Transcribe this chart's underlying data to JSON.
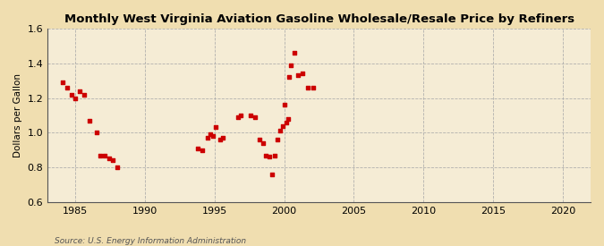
{
  "title": "Monthly West Virginia Aviation Gasoline Wholesale/Resale Price by Refiners",
  "ylabel": "Dollars per Gallon",
  "source": "Source: U.S. Energy Information Administration",
  "xlim": [
    1983,
    2022
  ],
  "ylim": [
    0.6,
    1.6
  ],
  "xticks": [
    1985,
    1990,
    1995,
    2000,
    2005,
    2010,
    2015,
    2020
  ],
  "yticks": [
    0.6,
    0.8,
    1.0,
    1.2,
    1.4,
    1.6
  ],
  "outer_bg": "#f0deb0",
  "plot_bg": "#f5ecd5",
  "marker_color": "#cc0000",
  "data_points": [
    [
      1984.1,
      1.29
    ],
    [
      1984.4,
      1.26
    ],
    [
      1984.7,
      1.22
    ],
    [
      1985.0,
      1.2
    ],
    [
      1985.3,
      1.24
    ],
    [
      1985.6,
      1.22
    ],
    [
      1986.0,
      1.07
    ],
    [
      1986.5,
      1.0
    ],
    [
      1986.8,
      0.87
    ],
    [
      1987.1,
      0.87
    ],
    [
      1987.4,
      0.85
    ],
    [
      1987.7,
      0.84
    ],
    [
      1988.0,
      0.8
    ],
    [
      1993.8,
      0.91
    ],
    [
      1994.1,
      0.9
    ],
    [
      1994.5,
      0.97
    ],
    [
      1994.7,
      0.99
    ],
    [
      1994.9,
      0.98
    ],
    [
      1995.1,
      1.03
    ],
    [
      1995.4,
      0.96
    ],
    [
      1995.6,
      0.97
    ],
    [
      1996.7,
      1.09
    ],
    [
      1996.9,
      1.1
    ],
    [
      1997.6,
      1.1
    ],
    [
      1997.9,
      1.09
    ],
    [
      1998.2,
      0.96
    ],
    [
      1998.5,
      0.94
    ],
    [
      1998.7,
      0.87
    ],
    [
      1998.9,
      0.86
    ],
    [
      1999.1,
      0.76
    ],
    [
      1999.3,
      0.87
    ],
    [
      1999.5,
      0.96
    ],
    [
      1999.7,
      1.01
    ],
    [
      1999.9,
      1.04
    ],
    [
      2000.0,
      1.16
    ],
    [
      2000.15,
      1.06
    ],
    [
      2000.25,
      1.08
    ],
    [
      2000.35,
      1.32
    ],
    [
      2000.5,
      1.39
    ],
    [
      2000.7,
      1.46
    ],
    [
      2001.0,
      1.33
    ],
    [
      2001.3,
      1.34
    ],
    [
      2001.7,
      1.26
    ],
    [
      2002.1,
      1.26
    ]
  ]
}
